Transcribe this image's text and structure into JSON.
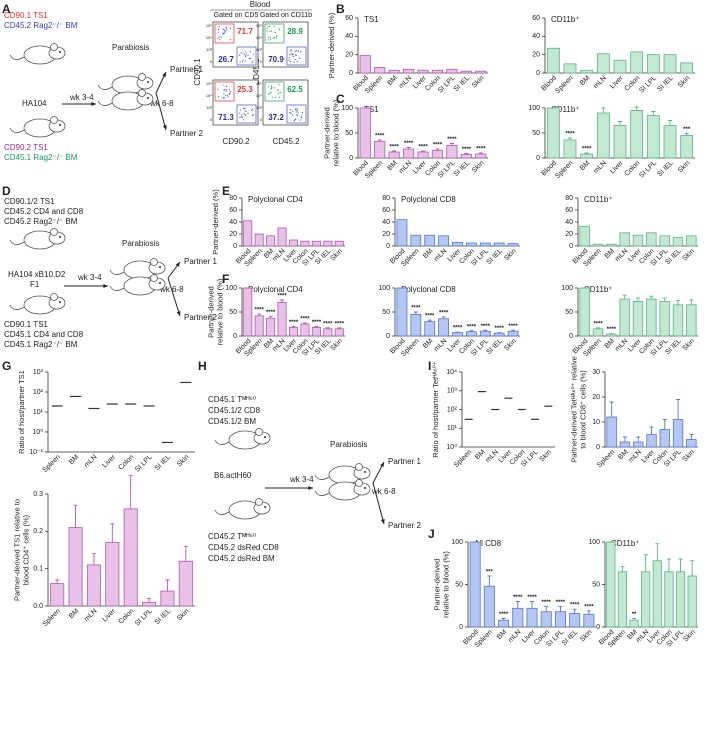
{
  "letters": [
    "A",
    "B",
    "C",
    "D",
    "E",
    "F",
    "G",
    "H",
    "I",
    "J"
  ],
  "panel_a": {
    "donor1": [
      "CD90.1 TS1",
      "CD45.2 Rag2⁻/⁻ BM"
    ],
    "host": "HA104",
    "donor2": [
      "CD90.2 TS1",
      "CD45.1 Rag2⁻/⁻ BM"
    ],
    "parabiosis": "Parabiosis",
    "wk1": "wk 3-4",
    "wk2": "wk 6-8",
    "partner1": "Partner 1",
    "partner2": "Partner 2",
    "blood": "Blood",
    "gate1": "Gated on CD5",
    "gate2": "Gated on CD11b",
    "flow": {
      "p1_cd5": [
        71.7,
        26.7
      ],
      "p1_cd11b": [
        28.9,
        70.9
      ],
      "p2_cd5": [
        25.3,
        71.3
      ],
      "p2_cd11b": [
        62.5,
        37.2
      ]
    },
    "axes": {
      "cd90_1": "CD90.1",
      "cd90_2": "CD90.2",
      "cd45_1": "CD45.1",
      "cd45_2": "CD45.2"
    },
    "flow_ticks": [
      "10⁵",
      "10⁴",
      "10³",
      "0"
    ]
  },
  "panel_d": {
    "donor1": [
      "CD90.1/2 TS1",
      "CD45.2 CD4 and CD8",
      "CD45.2 Rag2⁻/⁻ BM"
    ],
    "host": [
      "HA104 xB10.D2",
      "F1"
    ],
    "donor2": [
      "CD90.1 TS1",
      "CD45.1 CD4 and CD8",
      "CD45.1 Rag2⁻/⁻ BM"
    ],
    "parabiosis": "Parabiosis",
    "wk1": "wk 3-4",
    "wk2": "wk 6-8",
    "partner1": "Partner 1",
    "partner2": "Partner 2"
  },
  "panel_h": {
    "donor1": [
      "CD45.1 Tᴹᴴ⁶⁰",
      "CD45.1/2 CD8",
      "CD45.1/2 BM"
    ],
    "host": "B6.actH60",
    "donor2": [
      "CD45.2 Tᴹᴴ⁶⁰",
      "CD45.2 dsRed CD8",
      "CD45.2 dsRed BM"
    ],
    "parabiosis": "Parabiosis",
    "wk1": "wk 3-4",
    "wk2": "wk 6-8",
    "partner1": "Partner 1",
    "partner2": "Partner 2"
  },
  "chart_data": [
    {
      "type": "bar",
      "title": "TS1",
      "ylabel": [
        "Partner-derived (%)"
      ],
      "categories": [
        "Blood",
        "Spleen",
        "BM",
        "mLN",
        "Liver",
        "Colon",
        "SI LPL",
        "SI IEL",
        "Skin"
      ],
      "values": [
        19,
        6,
        3,
        4,
        3,
        3,
        4,
        2,
        2
      ],
      "color": "#e8c0e8",
      "edge": "#b05aae",
      "ylim": [
        0,
        60
      ],
      "yticks": [
        0,
        20,
        40,
        60
      ]
    },
    {
      "type": "bar",
      "title": "CD11b⁺",
      "categories": [
        "Blood",
        "Spleen",
        "BM",
        "mLN",
        "Liver",
        "Colon",
        "SI LPL",
        "SI IEL",
        "Skin"
      ],
      "values": [
        27,
        10,
        3,
        21,
        14,
        23,
        20,
        20,
        11
      ],
      "color": "#c2e8d2",
      "edge": "#5ab585",
      "ylim": [
        0,
        60
      ],
      "yticks": [
        0,
        20,
        40,
        60
      ]
    },
    {
      "type": "bar",
      "title": "TS1",
      "ylabel": [
        "Partner-derived",
        "relative to blood (%)"
      ],
      "categories": [
        "Blood",
        "Spleen",
        "BM",
        "mLN",
        "Liver",
        "Colon",
        "SI LPL",
        "SI IEL",
        "Skin"
      ],
      "values": [
        100,
        33,
        12,
        18,
        12,
        15,
        25,
        7,
        8
      ],
      "errors": [
        0,
        3,
        2,
        3,
        2,
        3,
        4,
        2,
        2
      ],
      "annotations": [
        null,
        "****",
        "****",
        "****",
        "****",
        "****",
        "****",
        "****",
        "****"
      ],
      "color": "#e8c0e8",
      "edge": "#b05aae",
      "ylim": [
        0,
        100
      ],
      "yticks": [
        0,
        50,
        100
      ]
    },
    {
      "type": "bar",
      "title": "CD11b⁺",
      "categories": [
        "Blood",
        "Spleen",
        "BM",
        "mLN",
        "Liver",
        "Colon",
        "SI LPL",
        "SI IEL",
        "Skin"
      ],
      "values": [
        100,
        36,
        8,
        90,
        65,
        95,
        85,
        65,
        45
      ],
      "errors": [
        0,
        4,
        2,
        10,
        8,
        7,
        8,
        10,
        4
      ],
      "annotations": [
        null,
        "****",
        "****",
        null,
        null,
        null,
        null,
        null,
        "***"
      ],
      "color": "#c2e8d2",
      "edge": "#5ab585",
      "ylim": [
        0,
        100
      ],
      "yticks": [
        0,
        50,
        100
      ]
    },
    {
      "type": "bar",
      "title": "Polyclonal CD4",
      "ylabel": [
        "Partner-derived (%)"
      ],
      "categories": [
        "Blood",
        "Spleen",
        "BM",
        "mLN",
        "Liver",
        "Colon",
        "SI LPL",
        "SI IEL",
        "Skin"
      ],
      "values": [
        42,
        20,
        17,
        30,
        10,
        8,
        8,
        8,
        8
      ],
      "color": "#e8c0e8",
      "edge": "#b05aae",
      "ylim": [
        0,
        80
      ],
      "yticks": [
        0,
        20,
        40,
        60,
        80
      ]
    },
    {
      "type": "bar",
      "title": "Polyclonal CD8",
      "categories": [
        "Blood",
        "Spleen",
        "BM",
        "mLN",
        "Liver",
        "Colon",
        "SI LPL",
        "SI IEL",
        "Skin"
      ],
      "values": [
        44,
        18,
        18,
        17,
        6,
        5,
        5,
        5,
        4
      ],
      "color": "#b4c6f2",
      "edge": "#5577d0",
      "ylim": [
        0,
        80
      ],
      "yticks": [
        0,
        20,
        40,
        60,
        80
      ]
    },
    {
      "type": "bar",
      "title": "CD11b⁺",
      "categories": [
        "Blood",
        "Spleen",
        "BM",
        "mLN",
        "Liver",
        "Colon",
        "SI LPL",
        "SI IEL",
        "Skin"
      ],
      "values": [
        33,
        3,
        3,
        22,
        18,
        22,
        17,
        14,
        17
      ],
      "color": "#c2e8d2",
      "edge": "#5ab585",
      "ylim": [
        0,
        80
      ],
      "yticks": [
        0,
        20,
        40,
        60,
        80
      ]
    },
    {
      "type": "bar",
      "title": "Polyclonal CD4",
      "ylabel": [
        "Partner-derived",
        "relative to blood (%)"
      ],
      "categories": [
        "Blood",
        "Spleen",
        "BM",
        "mLN",
        "Liver",
        "Colon",
        "SI LPL",
        "SI IEL",
        "Skin"
      ],
      "values": [
        100,
        42,
        37,
        70,
        18,
        25,
        18,
        15,
        15
      ],
      "errors": [
        0,
        4,
        4,
        5,
        2,
        2,
        2,
        2,
        2
      ],
      "annotations": [
        null,
        "****",
        "****",
        "****",
        "****",
        "****",
        "****",
        "****",
        "****"
      ],
      "color": "#e8c0e8",
      "edge": "#b05aae",
      "ylim": [
        0,
        100
      ],
      "yticks": [
        0,
        50,
        100
      ]
    },
    {
      "type": "bar",
      "title": "Polyclonal CD8",
      "categories": [
        "Blood",
        "Spleen",
        "BM",
        "mLN",
        "Liver",
        "Colon",
        "SI LPL",
        "SI IEL",
        "Skin"
      ],
      "values": [
        100,
        45,
        30,
        36,
        7,
        9,
        10,
        6,
        10
      ],
      "errors": [
        0,
        5,
        3,
        4,
        1,
        2,
        2,
        1,
        2
      ],
      "annotations": [
        null,
        "****",
        "****",
        "****",
        "****",
        "****",
        "****",
        "****",
        "****"
      ],
      "color": "#b4c6f2",
      "edge": "#5577d0",
      "ylim": [
        0,
        100
      ],
      "yticks": [
        0,
        50,
        100
      ]
    },
    {
      "type": "bar",
      "title": "CD11b⁺",
      "categories": [
        "Blood",
        "Spleen",
        "BM",
        "mLN",
        "Liver",
        "Colon",
        "SI LPL",
        "SI IEL",
        "Skin"
      ],
      "values": [
        100,
        15,
        4,
        77,
        72,
        77,
        72,
        65,
        65
      ],
      "errors": [
        0,
        2,
        1,
        8,
        7,
        6,
        7,
        9,
        10
      ],
      "annotations": [
        null,
        "****",
        "****",
        null,
        null,
        null,
        null,
        null,
        null
      ],
      "color": "#c2e8d2",
      "edge": "#5ab585",
      "ylim": [
        0,
        100
      ],
      "yticks": [
        0,
        50,
        100
      ]
    },
    {
      "type": "dotplot",
      "log": true,
      "ylabel": [
        "Ratio of host/partner TS1"
      ],
      "categories": [
        "Spleen",
        "BM",
        "mLN",
        "Liver",
        "Colon",
        "SI LPL",
        "SI IEL",
        "Skin"
      ],
      "values": [
        20,
        60,
        15,
        25,
        25,
        20,
        0.3,
        300
      ],
      "color": "#333333",
      "ylim": [
        0.1,
        1000
      ],
      "yticks": [
        {
          "value": 0.1,
          "label": "10⁻¹"
        },
        {
          "value": 1,
          "label": "10⁰"
        },
        {
          "value": 10,
          "label": "10¹"
        },
        {
          "value": 100,
          "label": "10²"
        },
        {
          "value": 1000,
          "label": "10³"
        }
      ]
    },
    {
      "type": "bar",
      "ylabel": [
        "Partner-derived TS1 relative to",
        "blood CD4⁺ cells (%)"
      ],
      "categories": [
        "Spleen",
        "BM",
        "mLN",
        "Liver",
        "Colon",
        "SI LPL",
        "SI IEL",
        "Skin"
      ],
      "values": [
        0.06,
        0.21,
        0.11,
        0.17,
        0.26,
        0.01,
        0.04,
        0.12
      ],
      "errors": [
        0.01,
        0.06,
        0.03,
        0.05,
        0.09,
        0.01,
        0.03,
        0.04
      ],
      "color": "#e8c0e8",
      "edge": "#b05aae",
      "ylim": [
        0,
        0.3
      ],
      "yticks": [
        {
          "value": 0,
          "label": "0.0"
        },
        0.1,
        0.2,
        0.3
      ]
    },
    {
      "type": "dotplot",
      "log": true,
      "ylabel": [
        "Ratio of host/partner Tetᴴᴬ⁶⁰⁺"
      ],
      "categories": [
        "Spleen",
        "BM",
        "mLN",
        "Liver",
        "Colon",
        "SI LPL",
        "Skin"
      ],
      "values": [
        30,
        900,
        100,
        400,
        100,
        30,
        150
      ],
      "color": "#333333",
      "ylim": [
        1,
        10000
      ],
      "yticks": [
        {
          "value": 1,
          "label": "10⁰"
        },
        {
          "value": 10,
          "label": "10¹"
        },
        {
          "value": 100,
          "label": "10²"
        },
        {
          "value": 1000,
          "label": "10³"
        },
        {
          "value": 10000,
          "label": "10⁴"
        }
      ]
    },
    {
      "type": "bar",
      "ylabel": [
        "Partner-derived Tetᴴᴬ⁶⁰⁺ relative",
        "to blood CD8⁺ cells (%)"
      ],
      "categories": [
        "Spleen",
        "BM",
        "mLN",
        "Liver",
        "Colon",
        "SI LPL",
        "Skin"
      ],
      "values": [
        12,
        2,
        2,
        5,
        7,
        11,
        3
      ],
      "errors": [
        6,
        2,
        2,
        3,
        4,
        8,
        2
      ],
      "color": "#b4c6f2",
      "edge": "#5577d0",
      "ylim": [
        0,
        30
      ],
      "yticks": [
        0,
        10,
        20,
        30
      ]
    },
    {
      "type": "bar",
      "title": "All CD8",
      "ylabel": [
        "Partner-derived",
        "relative to blood (%)"
      ],
      "categories": [
        "Blood",
        "Spleen",
        "BM",
        "mLN",
        "Liver",
        "Colon",
        "SI LPL",
        "SI IEL",
        "Skin"
      ],
      "values": [
        100,
        48,
        8,
        22,
        22,
        18,
        18,
        16,
        15
      ],
      "errors": [
        0,
        12,
        2,
        8,
        8,
        6,
        6,
        5,
        4
      ],
      "annotations": [
        null,
        "***",
        "****",
        "****",
        "****",
        "****",
        "****",
        "****",
        "****"
      ],
      "color": "#b4c6f2",
      "edge": "#5577d0",
      "ylim": [
        0,
        100
      ],
      "yticks": [
        0,
        50,
        100
      ]
    },
    {
      "type": "bar",
      "title": "CD11b⁺",
      "categories": [
        "Blood",
        "Spleen",
        "BM",
        "mLN",
        "Liver",
        "Colon",
        "SI LPL",
        "Skin"
      ],
      "values": [
        100,
        65,
        8,
        65,
        78,
        65,
        65,
        60
      ],
      "errors": [
        0,
        6,
        2,
        20,
        20,
        15,
        15,
        18
      ],
      "annotations": [
        null,
        null,
        "**",
        null,
        null,
        null,
        null,
        null
      ],
      "color": "#c2e8d2",
      "edge": "#5ab585",
      "ylim": [
        0,
        100
      ],
      "yticks": [
        0,
        50,
        100
      ]
    }
  ]
}
